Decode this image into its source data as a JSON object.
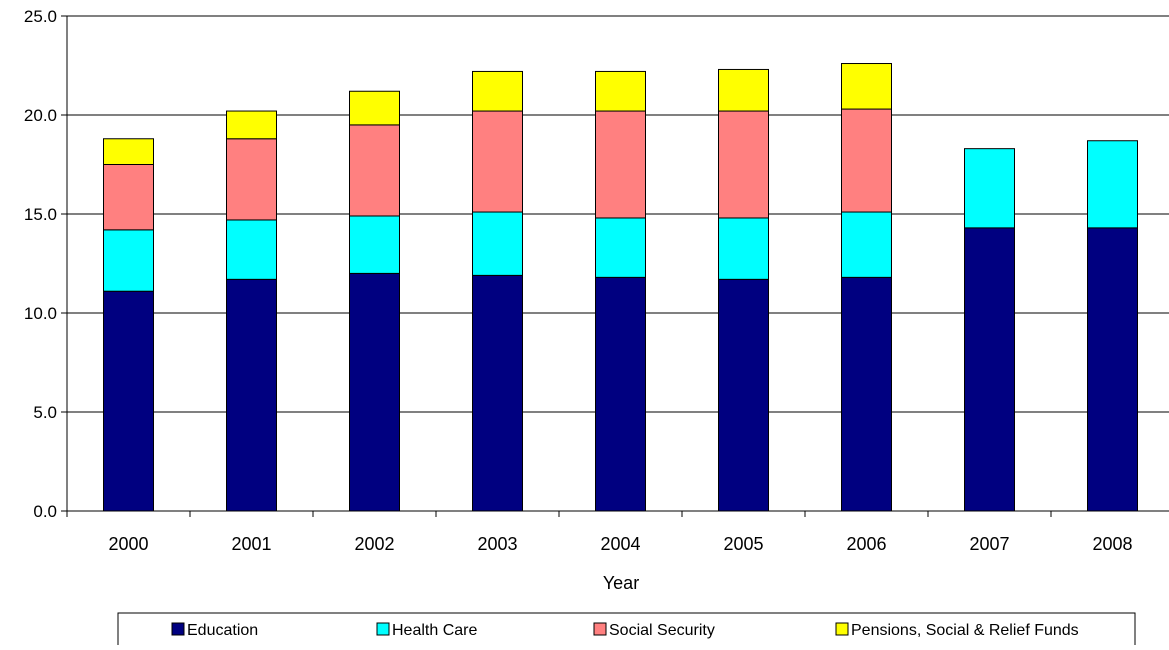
{
  "chart_data": {
    "type": "bar",
    "stacked": true,
    "title": "",
    "xlabel": "Year",
    "ylabel": "",
    "ylim": [
      0,
      25
    ],
    "yticks": [
      "0.0",
      "5.0",
      "10.0",
      "15.0",
      "20.0",
      "25.0"
    ],
    "grid": true,
    "legend_position": "bottom",
    "categories": [
      "2000",
      "2001",
      "2002",
      "2003",
      "2004",
      "2005",
      "2006",
      "2007",
      "2008"
    ],
    "series": [
      {
        "name": "Education",
        "color": "#000080",
        "values": [
          11.1,
          11.7,
          12.0,
          11.9,
          11.8,
          11.7,
          11.8,
          14.3,
          14.3
        ]
      },
      {
        "name": "Health Care",
        "color": "#00FFFF",
        "values": [
          3.1,
          3.0,
          2.9,
          3.2,
          3.0,
          3.1,
          3.3,
          4.0,
          4.4
        ]
      },
      {
        "name": "Social Security",
        "color": "#FF8080",
        "values": [
          3.3,
          4.1,
          4.6,
          5.1,
          5.4,
          5.4,
          5.2,
          0,
          0
        ]
      },
      {
        "name": "Pensions, Social & Relief Funds",
        "color": "#FFFF00",
        "values": [
          1.3,
          1.4,
          1.7,
          2.0,
          2.0,
          2.1,
          2.3,
          0,
          0
        ]
      }
    ]
  }
}
